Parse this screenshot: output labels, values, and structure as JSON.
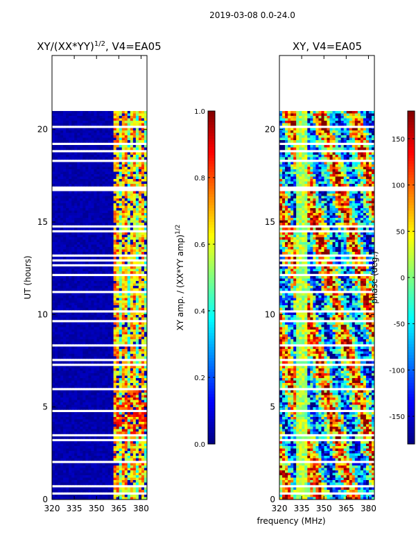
{
  "suptitle": "2019-03-08 0.0-24.0",
  "xlabel_shared": "frequency (MHz)",
  "chart_data": [
    {
      "type": "heatmap",
      "title_main": "XY/(XX*YY)",
      "title_sup": "1/2",
      "title_rest": ", V4=EA05",
      "ylabel": "UT (hours)",
      "xlim": [
        320,
        384
      ],
      "ylim": [
        0,
        24
      ],
      "xticks": [
        320,
        335,
        350,
        365,
        380
      ],
      "yticks": [
        0,
        5,
        10,
        15,
        20
      ],
      "data_top_hour": 21,
      "colorbar": {
        "label_main": "XY amp. / (XX*YY amp)",
        "label_sup": "1/2",
        "range": [
          0.0,
          1.0
        ],
        "ticks": [
          "0.0",
          "0.2",
          "0.4",
          "0.6",
          "0.8",
          "1.0"
        ],
        "colormap": "jet"
      }
    },
    {
      "type": "heatmap",
      "title": "XY, V4=EA05",
      "xlim": [
        320,
        384
      ],
      "ylim": [
        0,
        24
      ],
      "xticks": [
        320,
        335,
        350,
        365,
        380
      ],
      "yticks": [
        0,
        5,
        10,
        15,
        20
      ],
      "data_top_hour": 21,
      "colorbar": {
        "label": "phase (deg.)",
        "range": [
          -180,
          180
        ],
        "ticks": [
          -150,
          -100,
          -50,
          0,
          50,
          100,
          150
        ],
        "colormap": "jet"
      }
    }
  ]
}
